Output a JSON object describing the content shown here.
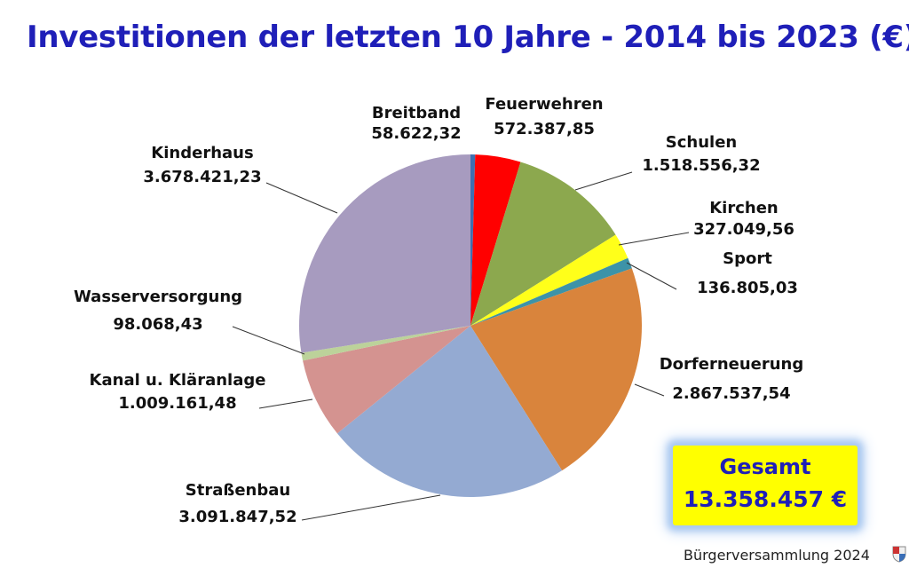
{
  "title": "Investitionen der letzten 10 Jahre - 2014 bis 2023 (€)",
  "chart_data": {
    "type": "pie",
    "title": "Investitionen der letzten 10 Jahre - 2014 bis 2023 (€)",
    "slices": [
      {
        "name": "Breitband",
        "value": 58622.32,
        "value_label": "58.622,32",
        "color": "#3f6fb0"
      },
      {
        "name": "Feuerwehren",
        "value": 572387.85,
        "value_label": "572.387,85",
        "color": "#ff0000"
      },
      {
        "name": "Schulen",
        "value": 1518556.32,
        "value_label": "1.518.556,32",
        "color": "#8ca84e"
      },
      {
        "name": "Kirchen",
        "value": 327049.56,
        "value_label": "327.049,56",
        "color": "#ffff1a"
      },
      {
        "name": "Sport",
        "value": 136805.03,
        "value_label": "136.805,03",
        "color": "#3d93a8"
      },
      {
        "name": "Dorferneuerung",
        "value": 2867537.54,
        "value_label": "2.867.537,54",
        "color": "#d9843c"
      },
      {
        "name": "Straßenbau",
        "value": 3091847.52,
        "value_label": "3.091.847,52",
        "color": "#94aad2"
      },
      {
        "name": "Kanal u. Kläranlage",
        "value": 1009161.48,
        "value_label": "1.009.161,48",
        "color": "#d49390"
      },
      {
        "name": "Wasserversorgung",
        "value": 98068.43,
        "value_label": "98.068,43",
        "color": "#bcd29a"
      },
      {
        "name": "Kinderhaus",
        "value": 3678421.23,
        "value_label": "3.678.421,23",
        "color": "#a79bbf"
      }
    ]
  },
  "total": {
    "label": "Gesamt",
    "value": "13.358.457 €"
  },
  "footer": "Bürgerversammlung 2024"
}
